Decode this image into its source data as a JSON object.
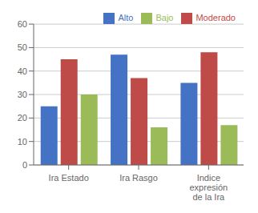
{
  "chart_data": {
    "type": "bar",
    "categories": [
      "Ira Estado",
      "Ira Rasgo",
      "Indice\nexpresión\nde la Ira"
    ],
    "series": [
      {
        "name": "Alto",
        "color": "#4472C4",
        "values": [
          25,
          47,
          35
        ]
      },
      {
        "name": "Moderado",
        "color": "#BE4B48",
        "values": [
          45,
          37,
          48
        ]
      },
      {
        "name": "Bajo",
        "color": "#9BBB59",
        "values": [
          30,
          16,
          17
        ]
      }
    ],
    "ylim": [
      0,
      60
    ],
    "yticks": [
      0,
      10,
      20,
      30,
      40,
      50,
      60
    ],
    "grid": true,
    "legend": "upper right"
  }
}
